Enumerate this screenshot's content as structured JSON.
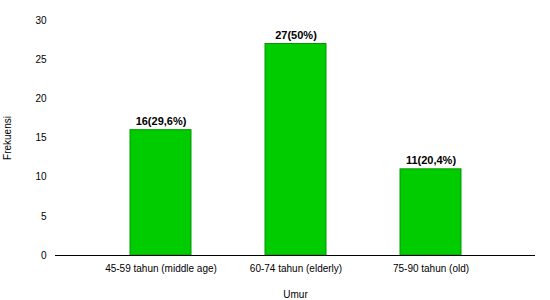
{
  "chart_data": {
    "type": "bar",
    "categories": [
      "45-59 tahun (middle age)",
      "60-74 tahun (elderly)",
      "75-90 tahun (old)"
    ],
    "values": [
      16,
      27,
      11
    ],
    "value_labels": [
      "16(29,6%)",
      "27(50%)",
      "11(20,4%)"
    ],
    "data_labels": true,
    "color": "#00cc00",
    "xlabel": "Umur",
    "ylabel": "Frekuensi",
    "ylim": [
      0,
      30
    ],
    "yticks": [
      0,
      5,
      10,
      15,
      20,
      25,
      30
    ],
    "grid": false
  }
}
